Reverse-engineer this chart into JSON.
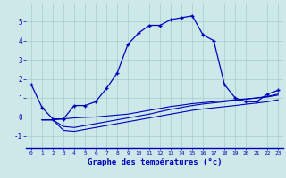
{
  "xlabel": "Graphe des températures (°c)",
  "background_color": "#cce8e8",
  "grid_color": "#aacccc",
  "line_color": "#0000bb",
  "xlim": [
    -0.5,
    23.5
  ],
  "ylim": [
    -1.6,
    6.0
  ],
  "xticks": [
    0,
    1,
    2,
    3,
    4,
    5,
    6,
    7,
    8,
    9,
    10,
    11,
    12,
    13,
    14,
    15,
    16,
    17,
    18,
    19,
    20,
    21,
    22,
    23
  ],
  "yticks": [
    -1,
    0,
    1,
    2,
    3,
    4,
    5
  ],
  "line1_x": [
    0,
    1,
    2,
    3,
    4,
    5,
    6,
    7,
    8,
    9,
    10,
    11,
    12,
    13,
    14,
    15,
    16,
    17,
    18,
    19,
    20,
    21,
    22,
    23
  ],
  "line1_y": [
    1.7,
    0.5,
    -0.1,
    -0.1,
    0.6,
    0.6,
    0.8,
    1.5,
    2.3,
    3.8,
    4.4,
    4.8,
    4.8,
    5.1,
    5.2,
    5.3,
    4.3,
    4.0,
    1.7,
    1.0,
    0.8,
    0.8,
    1.2,
    1.4
  ],
  "line2_x": [
    1,
    2,
    3,
    4,
    5,
    6,
    7,
    8,
    9,
    10,
    11,
    12,
    13,
    14,
    15,
    16,
    17,
    18,
    19,
    20,
    21,
    22,
    23
  ],
  "line2_y": [
    -0.15,
    -0.15,
    -0.1,
    -0.05,
    -0.02,
    0.0,
    0.05,
    0.1,
    0.15,
    0.25,
    0.35,
    0.45,
    0.55,
    0.62,
    0.7,
    0.75,
    0.8,
    0.85,
    0.9,
    0.95,
    1.0,
    1.05,
    1.15
  ],
  "line3_x": [
    1,
    2,
    3,
    4,
    5,
    6,
    7,
    8,
    9,
    10,
    11,
    12,
    13,
    14,
    15,
    16,
    17,
    18,
    19,
    20,
    21,
    22,
    23
  ],
  "line3_y": [
    -0.15,
    -0.15,
    -0.7,
    -0.75,
    -0.65,
    -0.55,
    -0.45,
    -0.35,
    -0.25,
    -0.15,
    -0.05,
    0.05,
    0.15,
    0.25,
    0.35,
    0.42,
    0.48,
    0.54,
    0.6,
    0.67,
    0.73,
    0.8,
    0.9
  ],
  "line4_x": [
    1,
    2,
    3,
    4,
    5,
    6,
    7,
    8,
    9,
    10,
    11,
    12,
    13,
    14,
    15,
    16,
    17,
    18,
    19,
    20,
    21,
    22,
    23
  ],
  "line4_y": [
    -0.15,
    -0.15,
    -0.5,
    -0.55,
    -0.45,
    -0.35,
    -0.25,
    -0.15,
    -0.05,
    0.05,
    0.15,
    0.28,
    0.4,
    0.5,
    0.6,
    0.68,
    0.74,
    0.8,
    0.87,
    0.93,
    1.0,
    1.08,
    1.2
  ]
}
